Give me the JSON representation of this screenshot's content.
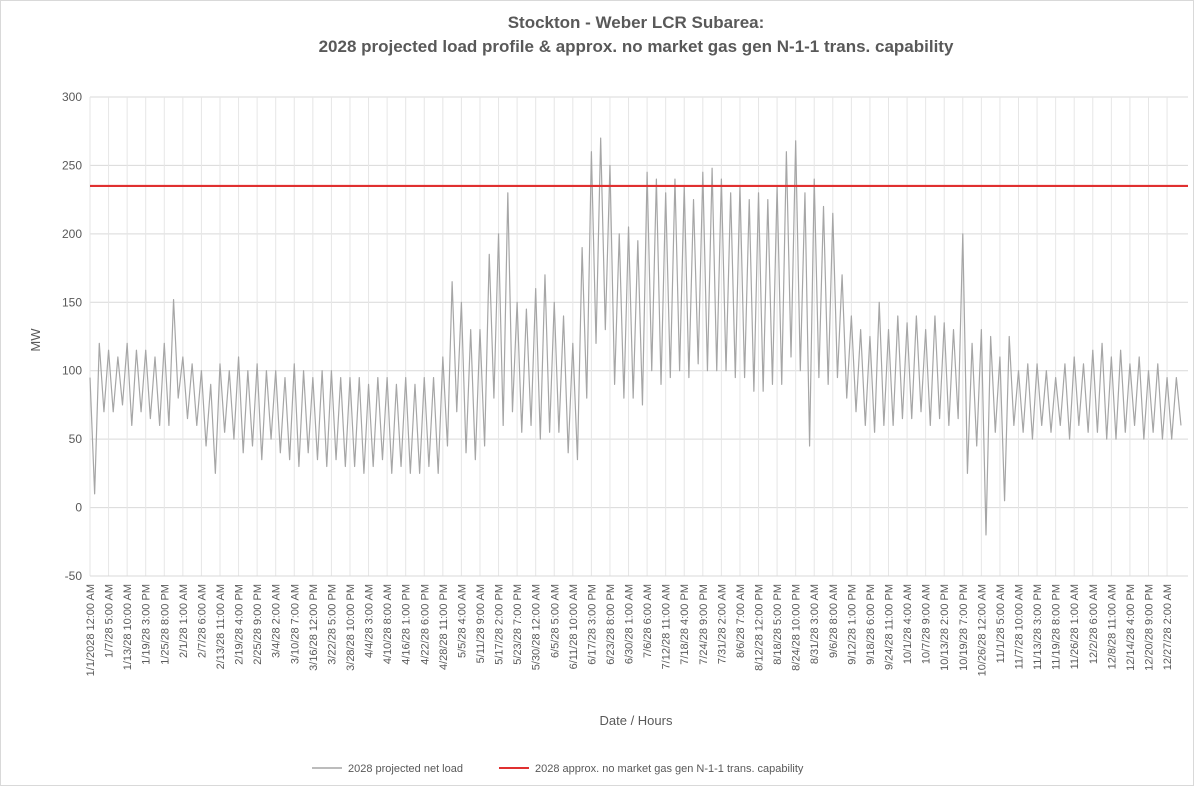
{
  "chart_data": {
    "type": "line",
    "title": "Stockton - Weber LCR Subarea:",
    "subtitle": "2028 projected load profile & approx. no market gas gen N-1-1 trans. capability",
    "x_label": "Date / Hours",
    "y_label": "MW",
    "ylim": [
      -50,
      300
    ],
    "yticks": [
      -50,
      0,
      50,
      100,
      150,
      200,
      250,
      300
    ],
    "grid": true,
    "legend": "bottom",
    "categories": [
      "1/1/2028 12:00 AM",
      null,
      null,
      null,
      "1/7/28 5:00 AM",
      null,
      null,
      null,
      "1/13/28 10:00 AM",
      null,
      null,
      null,
      "1/19/28 3:00 PM",
      null,
      null,
      null,
      "1/25/28 8:00 PM",
      null,
      null,
      null,
      "2/1/28 1:00 AM",
      null,
      null,
      null,
      "2/7/28 6:00 AM",
      null,
      null,
      null,
      "2/13/28 11:00 AM",
      null,
      null,
      null,
      "2/19/28 4:00 PM",
      null,
      null,
      null,
      "2/25/28 9:00 PM",
      null,
      null,
      null,
      "3/4/28 2:00 AM",
      null,
      null,
      null,
      "3/10/28 7:00 AM",
      null,
      null,
      null,
      "3/16/28 12:00 PM",
      null,
      null,
      null,
      "3/22/28 5:00 PM",
      null,
      null,
      null,
      "3/28/28 10:00 PM",
      null,
      null,
      null,
      "4/4/28 3:00 AM",
      null,
      null,
      null,
      "4/10/28 8:00 AM",
      null,
      null,
      null,
      "4/16/28 1:00 PM",
      null,
      null,
      null,
      "4/22/28 6:00 PM",
      null,
      null,
      null,
      "4/28/28 11:00 PM",
      null,
      null,
      null,
      "5/5/28 4:00 AM",
      null,
      null,
      null,
      "5/11/28 9:00 AM",
      null,
      null,
      null,
      "5/17/28 2:00 PM",
      null,
      null,
      null,
      "5/23/28 7:00 PM",
      null,
      null,
      null,
      "5/30/28 12:00 AM",
      null,
      null,
      null,
      "6/5/28 5:00 AM",
      null,
      null,
      null,
      "6/11/28 10:00 AM",
      null,
      null,
      null,
      "6/17/28 3:00 PM",
      null,
      null,
      null,
      "6/23/28 8:00 PM",
      null,
      null,
      null,
      "6/30/28 1:00 AM",
      null,
      null,
      null,
      "7/6/28 6:00 AM",
      null,
      null,
      null,
      "7/12/28 11:00 AM",
      null,
      null,
      null,
      "7/18/28 4:00 PM",
      null,
      null,
      null,
      "7/24/28 9:00 PM",
      null,
      null,
      null,
      "7/31/28 2:00 AM",
      null,
      null,
      null,
      "8/6/28 7:00 AM",
      null,
      null,
      null,
      "8/12/28 12:00 PM",
      null,
      null,
      null,
      "8/18/28 5:00 PM",
      null,
      null,
      null,
      "8/24/28 10:00 PM",
      null,
      null,
      null,
      "8/31/28 3:00 AM",
      null,
      null,
      null,
      "9/6/28 8:00 AM",
      null,
      null,
      null,
      "9/12/28 1:00 PM",
      null,
      null,
      null,
      "9/18/28 6:00 PM",
      null,
      null,
      null,
      "9/24/28 11:00 PM",
      null,
      null,
      null,
      "10/1/28 4:00 AM",
      null,
      null,
      null,
      "10/7/28 9:00 AM",
      null,
      null,
      null,
      "10/13/28 2:00 PM",
      null,
      null,
      null,
      "10/19/28 7:00 PM",
      null,
      null,
      null,
      "10/26/28 12:00 AM",
      null,
      null,
      null,
      "11/1/28 5:00 AM",
      null,
      null,
      null,
      "11/7/28 10:00 AM",
      null,
      null,
      null,
      "11/13/28 3:00 PM",
      null,
      null,
      null,
      "11/19/28 8:00 PM",
      null,
      null,
      null,
      "11/26/28 1:00 AM",
      null,
      null,
      null,
      "12/2/28 6:00 AM",
      null,
      null,
      null,
      "12/8/28 11:00 AM",
      null,
      null,
      null,
      "12/14/28 4:00 PM",
      null,
      null,
      null,
      "12/20/28 9:00 PM",
      null,
      null,
      null,
      "12/27/28 2:00 AM",
      null,
      null,
      null
    ],
    "series": [
      {
        "name": "2028 projected net load",
        "color": "#a6a6a6",
        "values": [
          95,
          10,
          120,
          70,
          115,
          70,
          110,
          75,
          120,
          60,
          115,
          70,
          115,
          65,
          110,
          60,
          120,
          60,
          152,
          80,
          110,
          65,
          105,
          60,
          100,
          45,
          90,
          25,
          105,
          55,
          100,
          50,
          110,
          40,
          100,
          45,
          105,
          35,
          100,
          50,
          100,
          40,
          95,
          35,
          105,
          30,
          100,
          40,
          95,
          35,
          100,
          30,
          100,
          35,
          95,
          30,
          95,
          30,
          95,
          25,
          90,
          30,
          95,
          35,
          95,
          25,
          90,
          30,
          95,
          25,
          90,
          25,
          95,
          30,
          95,
          25,
          110,
          45,
          165,
          70,
          150,
          40,
          130,
          35,
          130,
          45,
          185,
          80,
          200,
          60,
          230,
          70,
          150,
          55,
          145,
          60,
          160,
          50,
          170,
          55,
          150,
          55,
          140,
          40,
          120,
          35,
          190,
          80,
          260,
          120,
          270,
          130,
          250,
          90,
          200,
          80,
          205,
          80,
          195,
          75,
          245,
          100,
          240,
          90,
          230,
          95,
          240,
          100,
          235,
          95,
          225,
          105,
          245,
          100,
          248,
          100,
          240,
          100,
          230,
          95,
          235,
          95,
          225,
          85,
          230,
          85,
          225,
          90,
          235,
          90,
          260,
          110,
          268,
          100,
          230,
          45,
          240,
          95,
          220,
          90,
          215,
          95,
          170,
          80,
          140,
          70,
          130,
          60,
          125,
          55,
          150,
          60,
          130,
          60,
          140,
          65,
          135,
          65,
          140,
          70,
          130,
          60,
          140,
          65,
          135,
          60,
          130,
          65,
          200,
          25,
          120,
          45,
          130,
          -20,
          125,
          55,
          110,
          5,
          125,
          60,
          100,
          55,
          105,
          50,
          105,
          60,
          100,
          55,
          95,
          60,
          105,
          50,
          110,
          60,
          105,
          55,
          115,
          55,
          120,
          50,
          110,
          50,
          115,
          55,
          105,
          60,
          110,
          50,
          100,
          55,
          105,
          50,
          95,
          50,
          95,
          60
        ]
      }
    ],
    "reference_line": {
      "name": "2028 approx. no market gas gen N-1-1 trans. capability",
      "color": "#e03030",
      "value": 235
    }
  }
}
